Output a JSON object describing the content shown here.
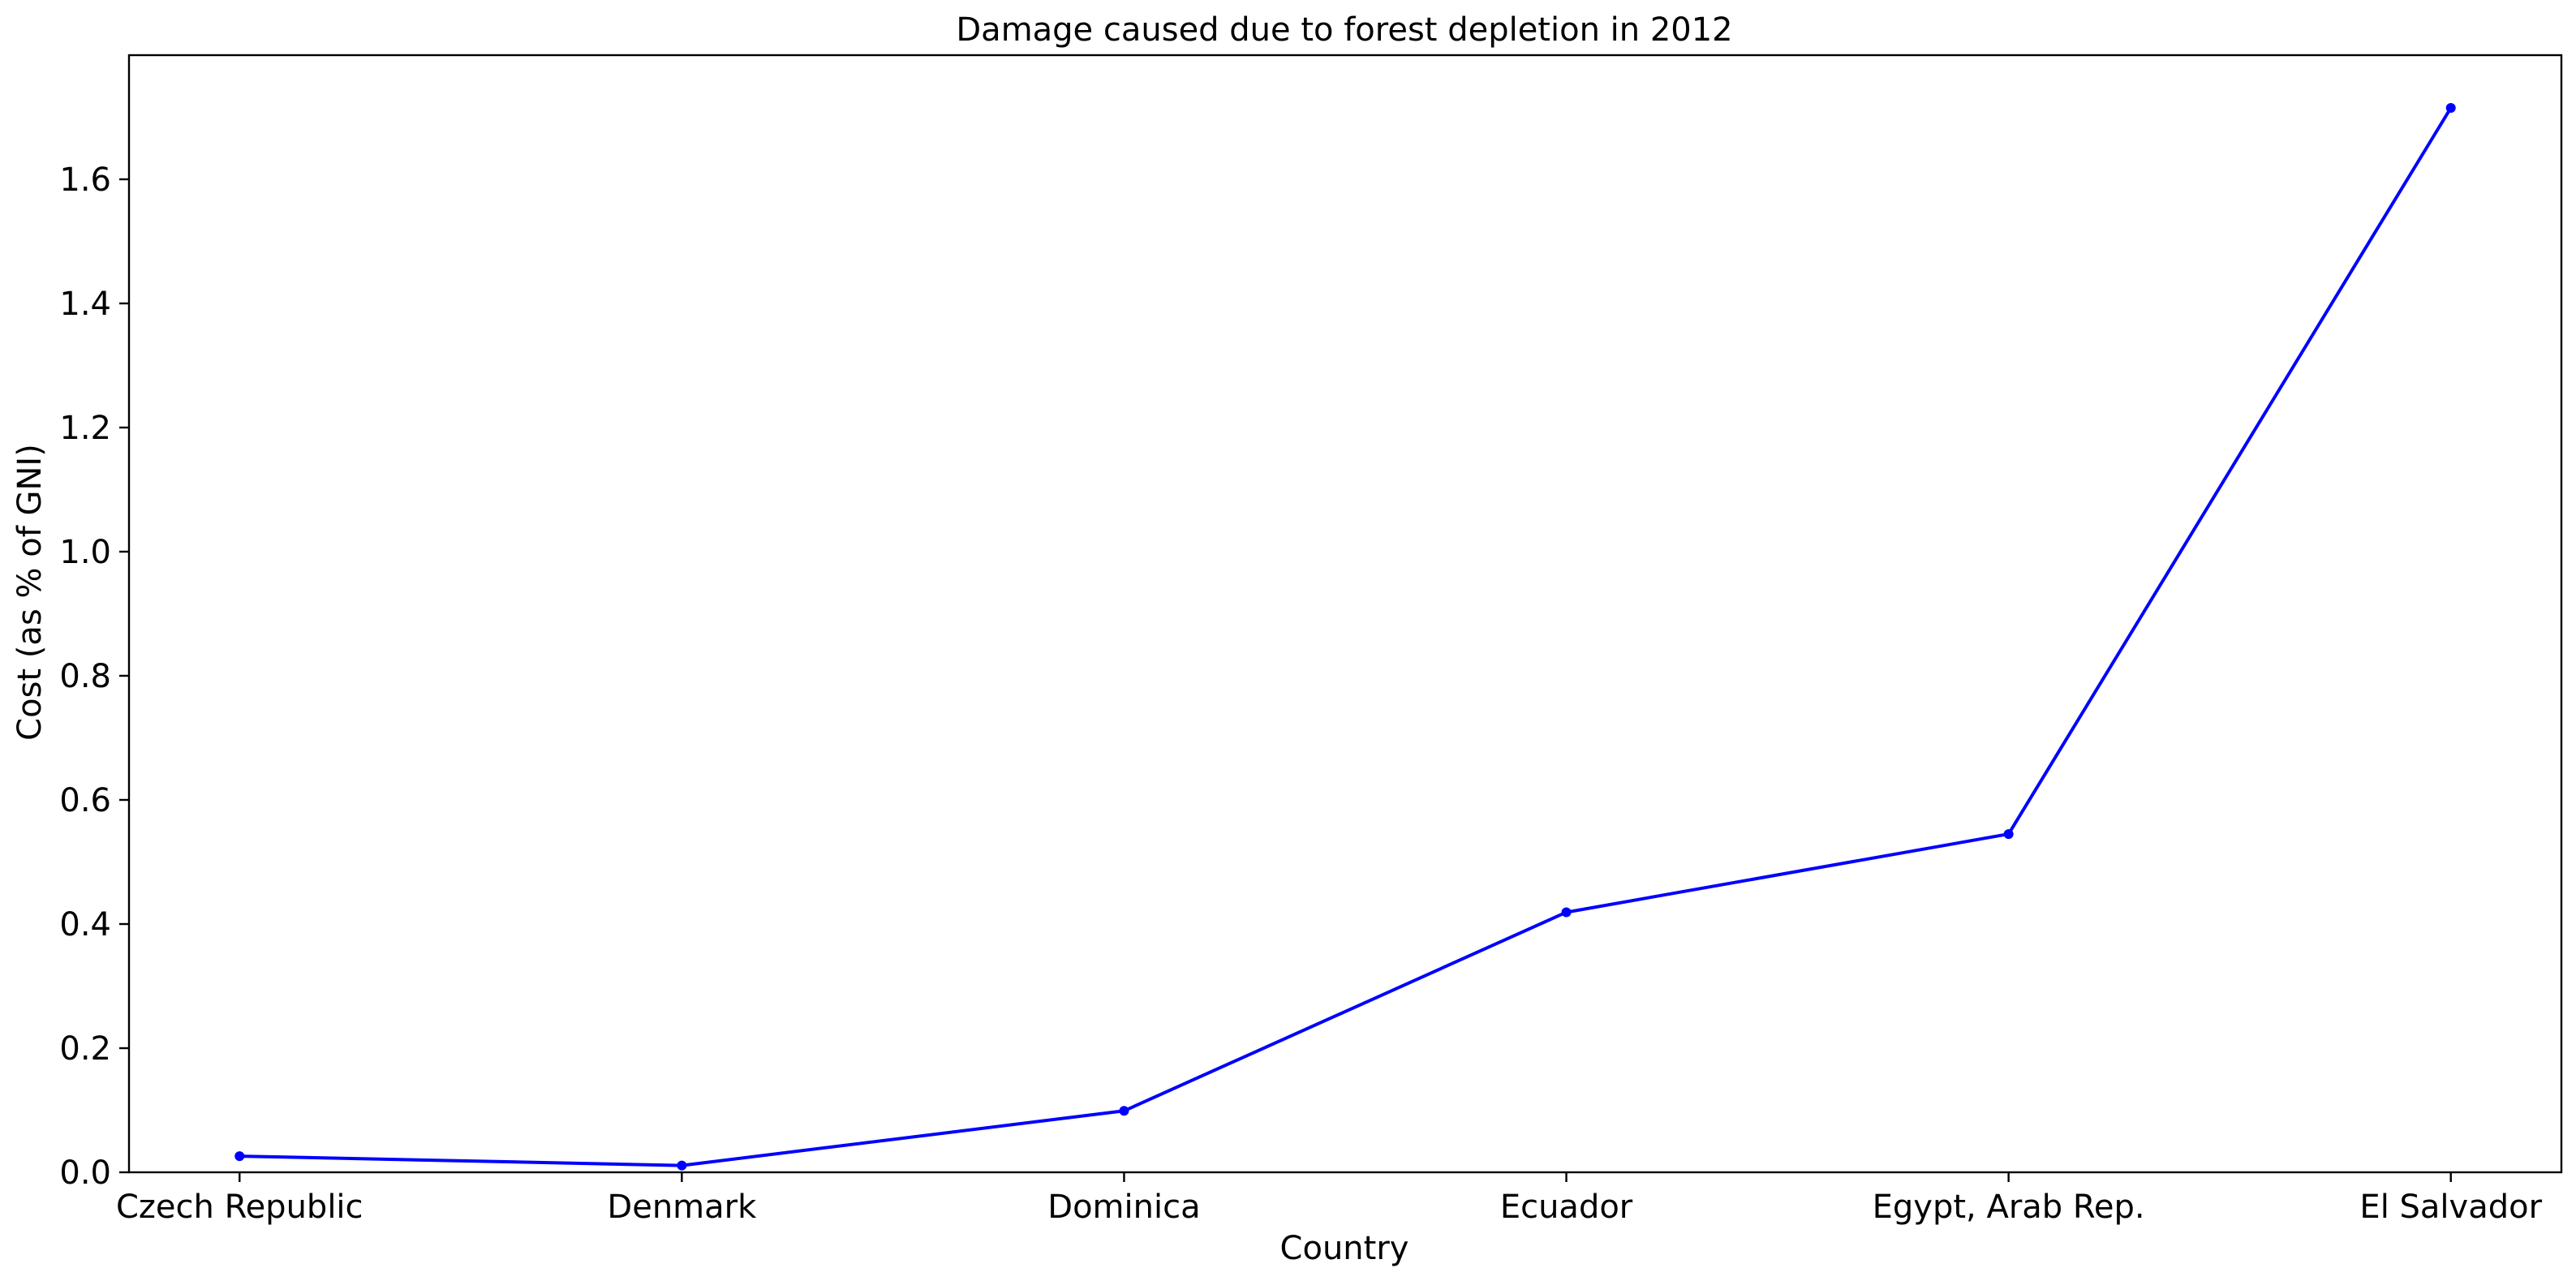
{
  "chart_data": {
    "type": "line",
    "title": "Damage caused due to forest depletion in 2012",
    "xlabel": "Country",
    "ylabel": "Cost (as % of GNI)",
    "categories": [
      "Czech Republic",
      "Denmark",
      "Dominica",
      "Ecuador",
      "Egypt, Arab Rep.",
      "El Salvador"
    ],
    "series": [
      {
        "values": [
          0.026,
          0.011,
          0.099,
          0.419,
          0.545,
          1.715
        ],
        "color": "#0000ff",
        "marker": "circle"
      }
    ],
    "ylim": [
      0,
      1.8
    ],
    "yticks": [
      0.0,
      0.2,
      0.4,
      0.6,
      0.8,
      1.0,
      1.2,
      1.4,
      1.6
    ],
    "ytick_labels": [
      "0.0",
      "0.2",
      "0.4",
      "0.6",
      "0.8",
      "1.0",
      "1.2",
      "1.4",
      "1.6"
    ],
    "grid": false,
    "legend": "none"
  }
}
